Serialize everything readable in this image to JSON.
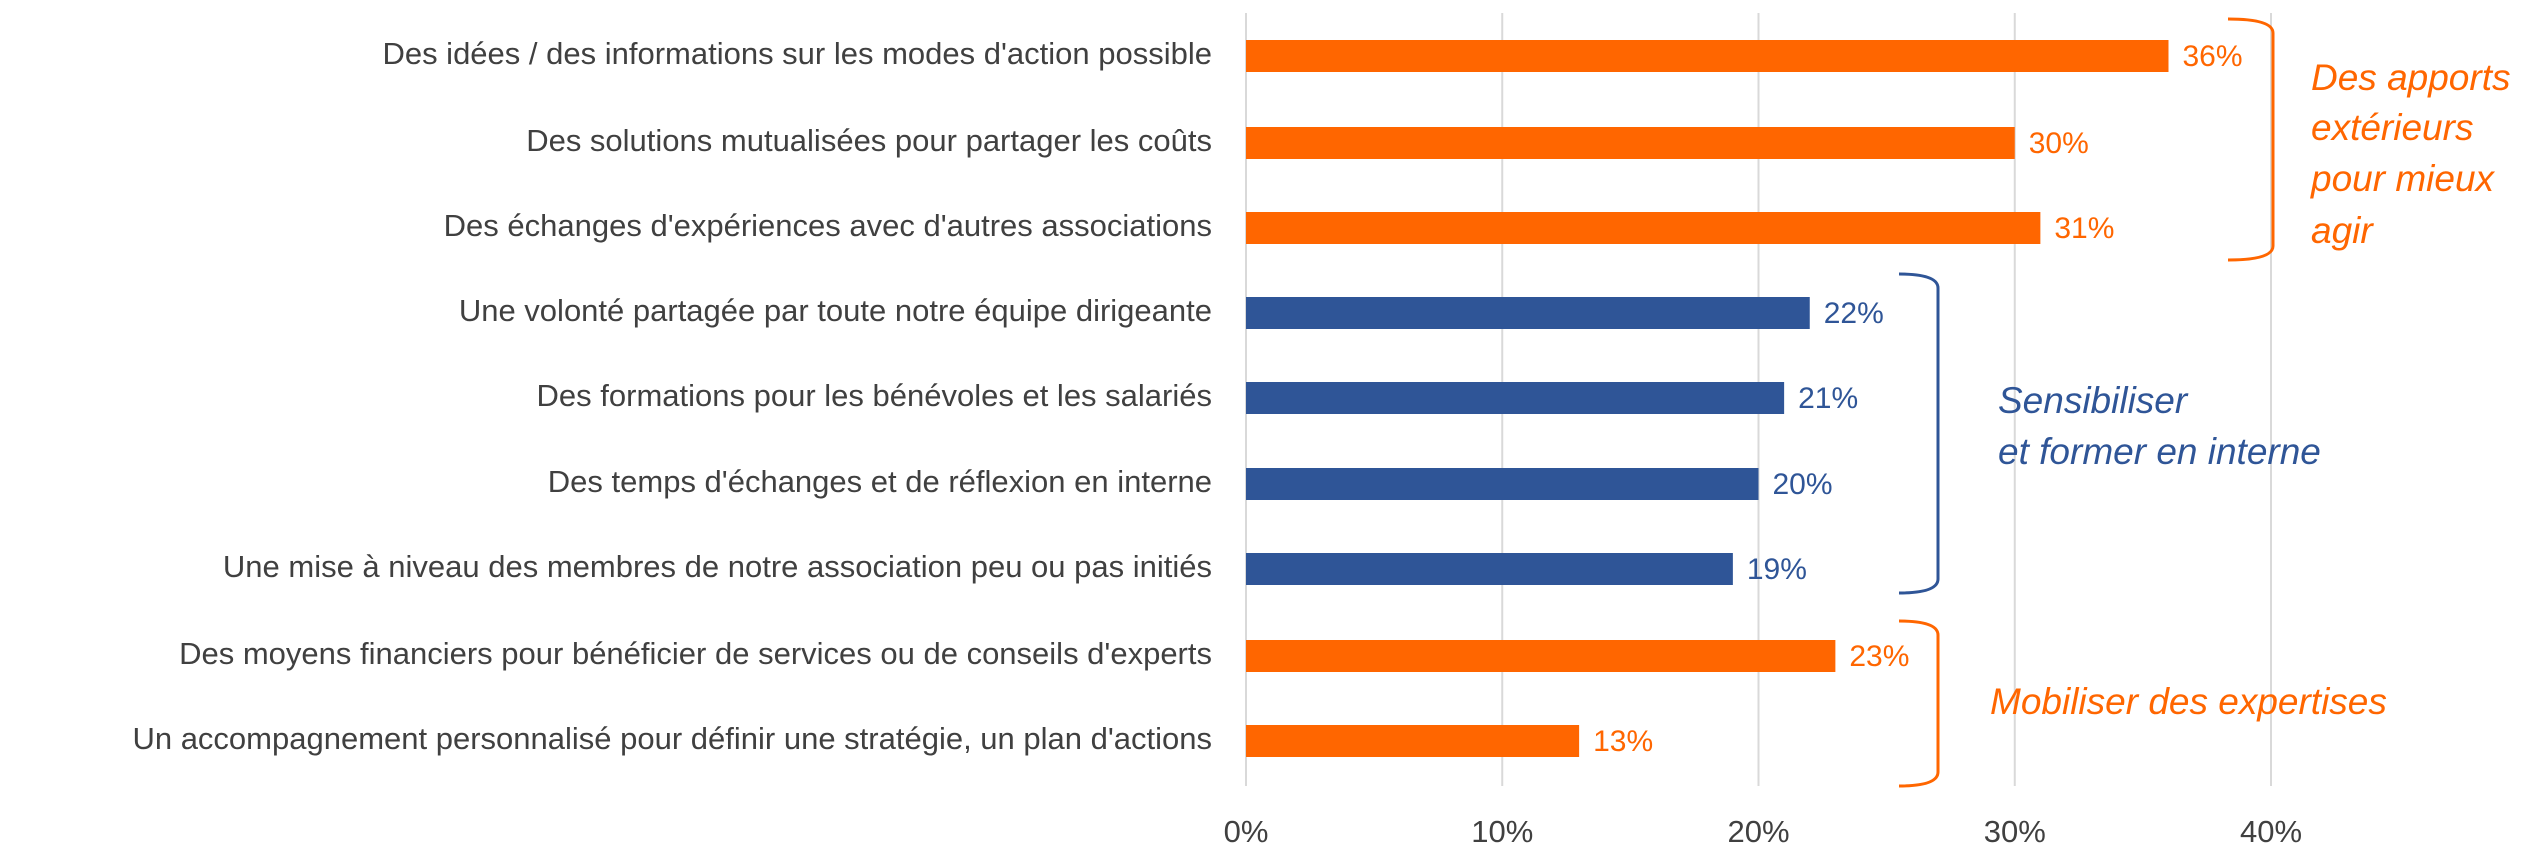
{
  "chart_data": {
    "type": "bar",
    "orientation": "horizontal",
    "categories": [
      "Des idées / des informations sur les modes d'action possible",
      "Des solutions mutualisées pour partager les coûts",
      "Des échanges d'expériences avec d'autres associations",
      "Une volonté partagée par toute notre équipe dirigeante",
      "Des formations pour les bénévoles et les salariés",
      "Des temps d'échanges et de réflexion en interne",
      "Une mise à niveau des membres de notre association peu ou pas initiés",
      "Des moyens financiers pour bénéficier de services ou de conseils d'experts",
      "Un accompagnement personnalisé pour définir une stratégie, un plan d'actions"
    ],
    "values": [
      36,
      30,
      31,
      22,
      21,
      20,
      19,
      23,
      13
    ],
    "value_labels": [
      "36%",
      "30%",
      "31%",
      "22%",
      "21%",
      "20%",
      "19%",
      "23%",
      "13%"
    ],
    "colors": [
      "#ff6600",
      "#ff6600",
      "#ff6600",
      "#2f5597",
      "#2f5597",
      "#2f5597",
      "#2f5597",
      "#ff6600",
      "#ff6600"
    ],
    "xlim": [
      0,
      40
    ],
    "xticks": [
      {
        "value": 0,
        "label": "0%"
      },
      {
        "value": 10,
        "label": "10%"
      },
      {
        "value": 20,
        "label": "20%"
      },
      {
        "value": 30,
        "label": "30%"
      },
      {
        "value": 40,
        "label": "40%"
      }
    ],
    "grid": true,
    "annotations": [
      {
        "lines": [
          "Des apports",
          "extérieurs",
          "pour mieux",
          "agir"
        ],
        "color": "#ff6600"
      },
      {
        "lines": [
          "Sensibiliser",
          "et former en interne"
        ],
        "color": "#2f5597"
      },
      {
        "lines": [
          "Mobiliser des expertises"
        ],
        "color": "#ff6600"
      }
    ]
  }
}
